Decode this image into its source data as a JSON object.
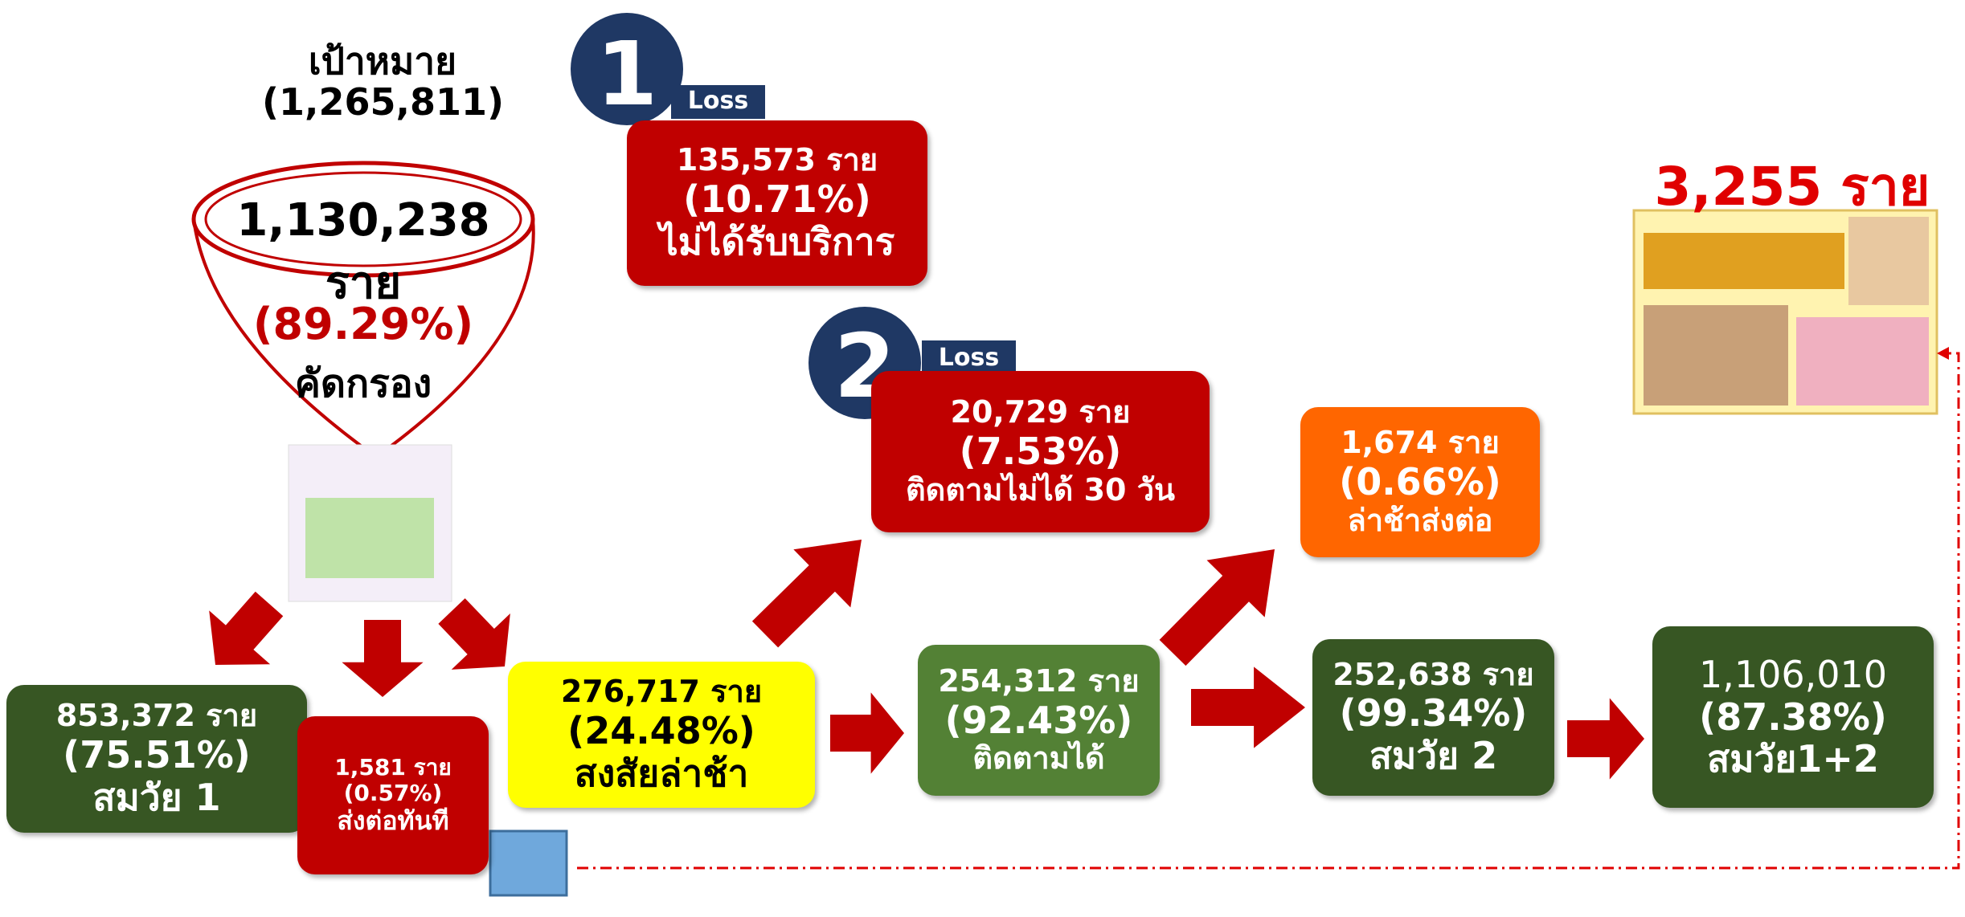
{
  "target": {
    "title": "เป้าหมาย",
    "count": "(1,265,811)"
  },
  "screened": {
    "count": "1,130,238  ราย",
    "percent": "(89.29%)",
    "label": "คัดกรอง"
  },
  "losses": [
    {
      "badge": "1",
      "tag": "Loss",
      "count": "135,573 ราย",
      "percent": "(10.71%)",
      "label": "ไม่ได้รับบริการ"
    },
    {
      "badge": "2",
      "tag": "Loss",
      "count": "20,729 ราย",
      "percent": "(7.53%)",
      "label": "ติดตามไม่ได้ 30 วัน"
    }
  ],
  "nodes": [
    {
      "count": "853,372 ราย",
      "percent": "(75.51%)",
      "label": "สมวัย 1"
    },
    {
      "count": "1,581 ราย",
      "percent": "(0.57%)",
      "label": "ส่งต่อทันที"
    },
    {
      "count": "276,717 ราย",
      "percent": "(24.48%)",
      "label": "สงสัยล่าช้า"
    },
    {
      "count": "254,312 ราย",
      "percent": "(92.43%)",
      "label": "ติดตามได้"
    },
    {
      "count": "1,674 ราย",
      "percent": "(0.66%)",
      "label": "ล่าช้าส่งต่อ"
    },
    {
      "count": "252,638 ราย",
      "percent": "(99.34%)",
      "label": "สมวัย 2"
    },
    {
      "count": "1,106,010",
      "percent": "(87.38%)",
      "label": "สมวัย1+2"
    }
  ],
  "highlight": "3,255 ราย"
}
